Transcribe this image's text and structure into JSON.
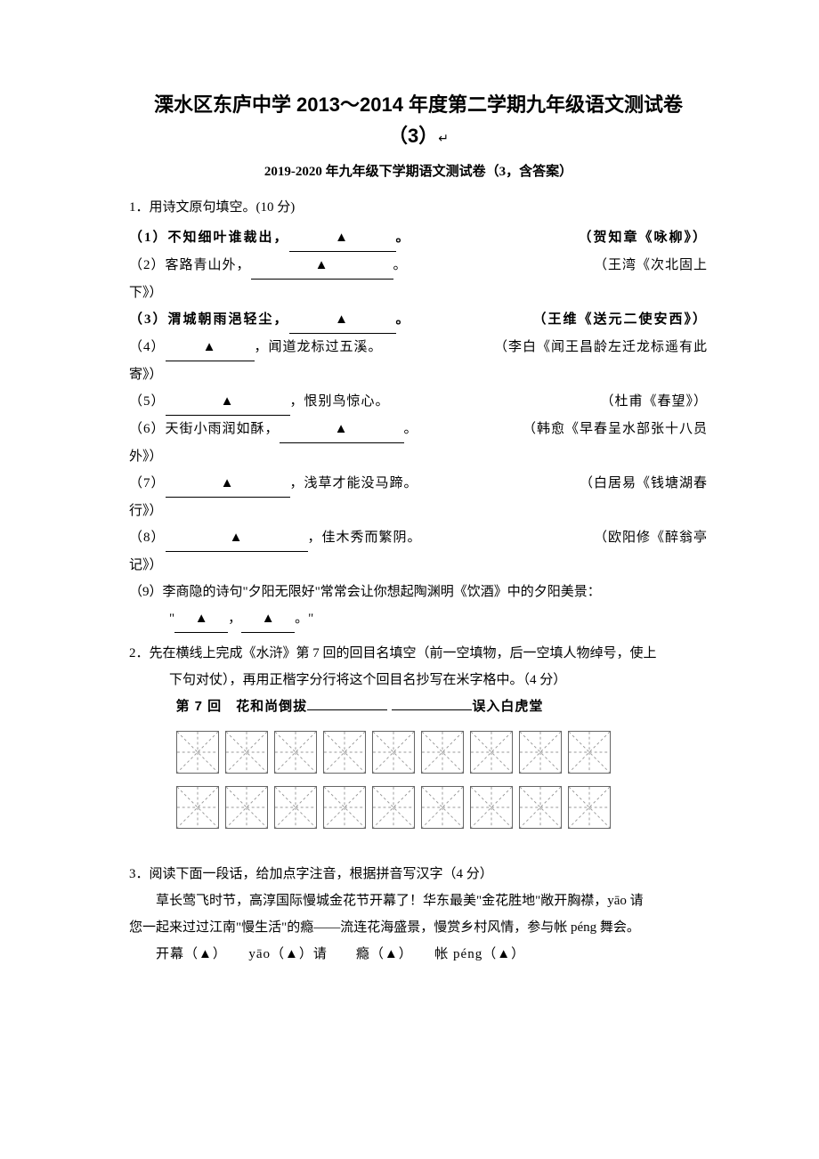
{
  "title": {
    "main": "溧水区东庐中学 2013～2014 年度第二学期九年级语文测试卷",
    "sub": "（3）",
    "arrow": "↵"
  },
  "subtitle": "2019-2020 年九年级下学期语文测试卷（3，含答案）",
  "q1": {
    "intro": "1．用诗文原句填空。(10 分)",
    "items": [
      {
        "left_a": "（1）不知细叶谁裁出，",
        "left_b": "。",
        "right": "（贺知章《咏柳》）",
        "bold": true,
        "w": "w120"
      },
      {
        "left_a": "（2）客路青山外，",
        "left_b": "。",
        "right": "（王湾《次北固上",
        "w": "w160"
      }
    ],
    "item2_tail": "下》）",
    "items3": [
      {
        "left_a": "（3）渭城朝雨浥轻尘，",
        "left_b": "。",
        "right": "（王维《送元二使安西》）",
        "bold": true,
        "w": "w120"
      },
      {
        "left_a": "（4）",
        "left_b": "，闻道龙标过五溪。",
        "right": "（李白《闻王昌龄左迁龙标遥有此",
        "w": "w100"
      }
    ],
    "item4_tail": "寄》）",
    "items5": [
      {
        "left_a": "（5）",
        "left_b": "，恨别鸟惊心。",
        "right": "（杜甫《春望》）",
        "w": "w140"
      },
      {
        "left_a": "（6）天街小雨润如酥，",
        "left_b": "。",
        "right": "（韩愈《早春呈水部张十八员",
        "w": "w140"
      }
    ],
    "item6_tail": "外》）",
    "items7": [
      {
        "left_a": "（7）",
        "left_b": "，浅草才能没马蹄。",
        "right": "（白居易《钱塘湖春",
        "w": "w140"
      }
    ],
    "item7_tail": "行》）",
    "items8": [
      {
        "left_a": "（8）",
        "left_b": "，佳木秀而繁阴。",
        "right": "（欧阳修《醉翁亭",
        "w": "w160"
      }
    ],
    "item8_tail": "记》）",
    "item9_line1": "（9）李商隐的诗句\"夕阳无限好\"常常会让你想起陶渊明《饮酒》中的夕阳美景：",
    "item9_line2_a": "\"",
    "item9_line2_b": "，",
    "item9_line2_c": "。\"",
    "triangle": "▲"
  },
  "q2": {
    "line1": "2．先在横线上完成《水浒》第 7 回的回目名填空（前一空填物，后一空填人物绰号，使上",
    "line2": "下句对仗），再用正楷字分行将这个回目名抄写在米字格中。（4 分）",
    "title_a": "第 7 回　花和尚倒拔",
    "title_b": "误入白虎堂"
  },
  "q3": {
    "line1": "3．阅读下面一段话，给加点字注音，根据拼音写汉字（4 分）",
    "para1": "草长莺飞时节，高淳国际慢城金花节开幕了！华东最美\"金花胜地\"敞开胸襟，yāo 请",
    "para2": "您一起来过过江南\"慢生活\"的瘾——流连花海盛景，慢赏乡村风情，参与帐 péng 舞会。",
    "fill": {
      "a": "开幕（",
      "tri": "▲",
      "b": "）　　yāo（",
      "c": "）请　　瘾（",
      "d": "）　　帐 péng（",
      "e": "）"
    }
  }
}
